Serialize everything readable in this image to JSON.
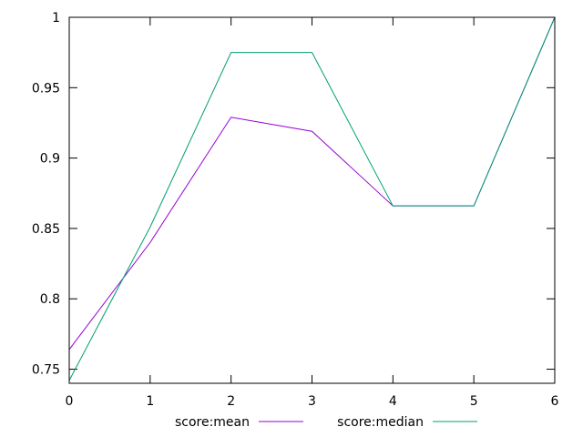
{
  "chart_data": {
    "type": "line",
    "title": "",
    "xlabel": "",
    "ylabel": "",
    "x": [
      0,
      1,
      2,
      3,
      4,
      5,
      6
    ],
    "xlim": [
      0,
      6
    ],
    "ylim": [
      0.74,
      1.0
    ],
    "xticks": [
      "0",
      "1",
      "2",
      "3",
      "4",
      "5",
      "6"
    ],
    "xtick_values": [
      0,
      1,
      2,
      3,
      4,
      5,
      6
    ],
    "yticks": [
      "0.75",
      "0.8",
      "0.85",
      "0.9",
      "0.95",
      "1"
    ],
    "ytick_values": [
      0.75,
      0.8,
      0.85,
      0.9,
      0.95,
      1.0
    ],
    "grid": false,
    "legend_position": "bottom-center",
    "series": [
      {
        "name": "score:mean",
        "color": "#9400d3",
        "values": [
          0.764,
          0.84,
          0.929,
          0.919,
          0.866,
          0.866,
          1.0
        ]
      },
      {
        "name": "score:median",
        "color": "#009e73",
        "values": [
          0.742,
          0.851,
          0.975,
          0.975,
          0.866,
          0.866,
          1.0
        ]
      }
    ]
  }
}
